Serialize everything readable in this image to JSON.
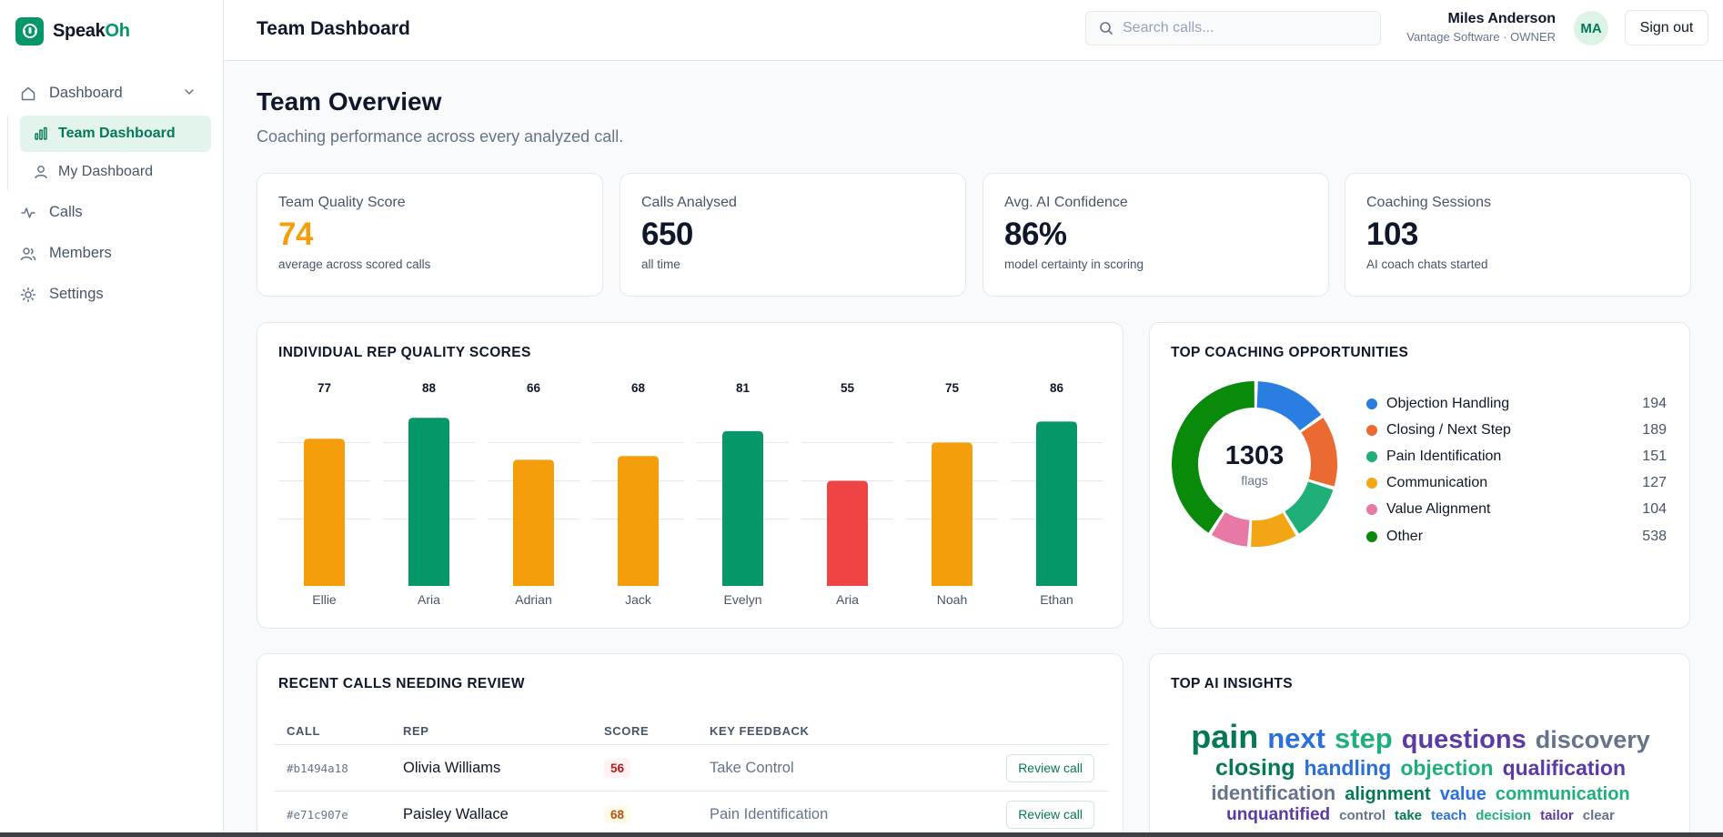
{
  "brand": {
    "name_main": "Speak",
    "name_accent": "Oh"
  },
  "sidebar": {
    "items": [
      {
        "label": "Dashboard"
      },
      {
        "label": "Team Dashboard"
      },
      {
        "label": "My Dashboard"
      },
      {
        "label": "Calls"
      },
      {
        "label": "Members"
      },
      {
        "label": "Settings"
      }
    ]
  },
  "header": {
    "title": "Team Dashboard",
    "search_placeholder": "Search calls...",
    "user_name": "Miles Anderson",
    "user_org": "Vantage Software · OWNER",
    "avatar_initials": "MA",
    "signout_label": "Sign out"
  },
  "main": {
    "title": "Team Overview",
    "subtitle": "Coaching performance across every analyzed call."
  },
  "kpis": [
    {
      "label": "Team Quality Score",
      "value": "74",
      "note": "average across scored calls",
      "color": "#f59e0b"
    },
    {
      "label": "Calls Analysed",
      "value": "650",
      "note": "all time"
    },
    {
      "label": "Avg. AI Confidence",
      "value": "86%",
      "note": "model certainty in scoring"
    },
    {
      "label": "Coaching Sessions",
      "value": "103",
      "note": "AI coach chats started"
    }
  ],
  "colors": {
    "good": "#059669",
    "mid": "#f59e0b",
    "bad": "#ef4444",
    "accent": "#059669"
  },
  "chart_data": [
    {
      "type": "bar",
      "title": "INDIVIDUAL REP QUALITY SCORES",
      "categories": [
        "Ellie",
        "Aria",
        "Adrian",
        "Jack",
        "Evelyn",
        "Aria",
        "Noah",
        "Ethan"
      ],
      "values": [
        77,
        88,
        66,
        68,
        81,
        55,
        75,
        86
      ],
      "colors": [
        "#f59e0b",
        "#059669",
        "#f59e0b",
        "#f59e0b",
        "#059669",
        "#ef4444",
        "#f59e0b",
        "#059669"
      ],
      "ylim": [
        0,
        100
      ],
      "grid": true
    },
    {
      "type": "pie",
      "title": "TOP COACHING OPPORTUNITIES",
      "total": "1303",
      "total_unit": "flags",
      "slices": [
        {
          "label": "Objection Handling",
          "value": 194,
          "color": "#2a7de1"
        },
        {
          "label": "Closing / Next Step",
          "value": 189,
          "color": "#ea6a32"
        },
        {
          "label": "Pain Identification",
          "value": 151,
          "color": "#1fb07a"
        },
        {
          "label": "Communication",
          "value": 127,
          "color": "#f2a614"
        },
        {
          "label": "Value Alignment",
          "value": 104,
          "color": "#e879a6"
        },
        {
          "label": "Other",
          "value": 538,
          "color": "#0a8a0a"
        }
      ]
    }
  ],
  "calls": {
    "title": "RECENT CALLS NEEDING REVIEW",
    "headers": {
      "call": "CALL",
      "rep": "REP",
      "score": "SCORE",
      "feedback": "KEY FEEDBACK"
    },
    "rows": [
      {
        "call": "#b1494a18",
        "rep": "Olivia Williams",
        "score": "56",
        "feedback": "Take Control",
        "action": "Review call"
      },
      {
        "call": "#e71c907e",
        "rep": "Paisley Wallace",
        "score": "68",
        "feedback": "Pain Identification",
        "action": "Review call"
      }
    ]
  },
  "insights": {
    "title": "TOP AI INSIGHTS",
    "words": [
      {
        "text": "pain",
        "color": "#047857",
        "size": 36
      },
      {
        "text": "next",
        "color": "#2a6fdb",
        "size": 31
      },
      {
        "text": "step",
        "color": "#1fb07a",
        "size": 31
      },
      {
        "text": "questions",
        "color": "#5b3aa8",
        "size": 29
      },
      {
        "text": "discovery",
        "color": "#64748b",
        "size": 27
      },
      {
        "text": "closing",
        "color": "#047857",
        "size": 25
      },
      {
        "text": "handling",
        "color": "#2a6fdb",
        "size": 23
      },
      {
        "text": "objection",
        "color": "#1fb07a",
        "size": 23
      },
      {
        "text": "qualification",
        "color": "#5b3aa8",
        "size": 23
      },
      {
        "text": "identification",
        "color": "#64748b",
        "size": 22
      },
      {
        "text": "alignment",
        "color": "#047857",
        "size": 20
      },
      {
        "text": "value",
        "color": "#2a6fdb",
        "size": 20
      },
      {
        "text": "communication",
        "color": "#1fb07a",
        "size": 20
      },
      {
        "text": "unquantified",
        "color": "#5b3aa8",
        "size": 19
      },
      {
        "text": "control",
        "color": "#64748b",
        "size": 15
      },
      {
        "text": "take",
        "color": "#047857",
        "size": 15
      },
      {
        "text": "teach",
        "color": "#2a6fdb",
        "size": 15
      },
      {
        "text": "decision",
        "color": "#1fb07a",
        "size": 15
      },
      {
        "text": "tailor",
        "color": "#5b3aa8",
        "size": 15
      },
      {
        "text": "clear",
        "color": "#64748b",
        "size": 15
      }
    ]
  }
}
